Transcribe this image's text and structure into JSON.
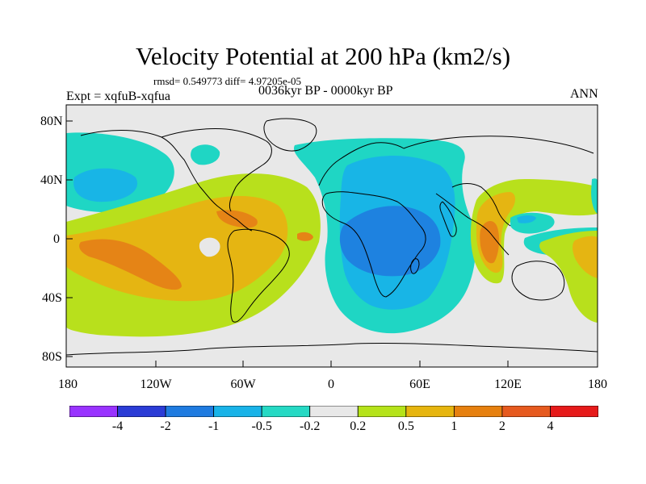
{
  "title": "Velocity Potential at 200 hPa (km2/s)",
  "stats": "rmsd= 0.549773 diff= 4.97205e-05",
  "expt": "Expt = xqfuB-xqfua",
  "period": "0036kyr BP - 0000kyr BP",
  "season": "ANN",
  "y_ticks": [
    "80N",
    "40N",
    "0",
    "40S",
    "80S"
  ],
  "x_ticks": [
    "180",
    "120W",
    "60W",
    "0",
    "60E",
    "120E",
    "180"
  ],
  "colorbar": {
    "labels": [
      "-4",
      "-2",
      "-1",
      "-0.5",
      "-0.2",
      "0.2",
      "0.5",
      "1",
      "2",
      "4"
    ],
    "colors": [
      "#9933ff",
      "#2b3cd6",
      "#1f7be0",
      "#19b3e8",
      "#26d9c4",
      "#e8e8e8",
      "#b5e31a",
      "#e6b50f",
      "#e6800f",
      "#e65a1f",
      "#e61a1a"
    ]
  },
  "palette": {
    "neg05": "#1fd6c4",
    "neg1": "#18b5e6",
    "neg2": "#1e82e0",
    "zero": "#e8e8e8",
    "pos02": "#b8e01c",
    "pos05": "#e5b512",
    "pos1": "#e58416",
    "pos2": "#e36a1f"
  }
}
